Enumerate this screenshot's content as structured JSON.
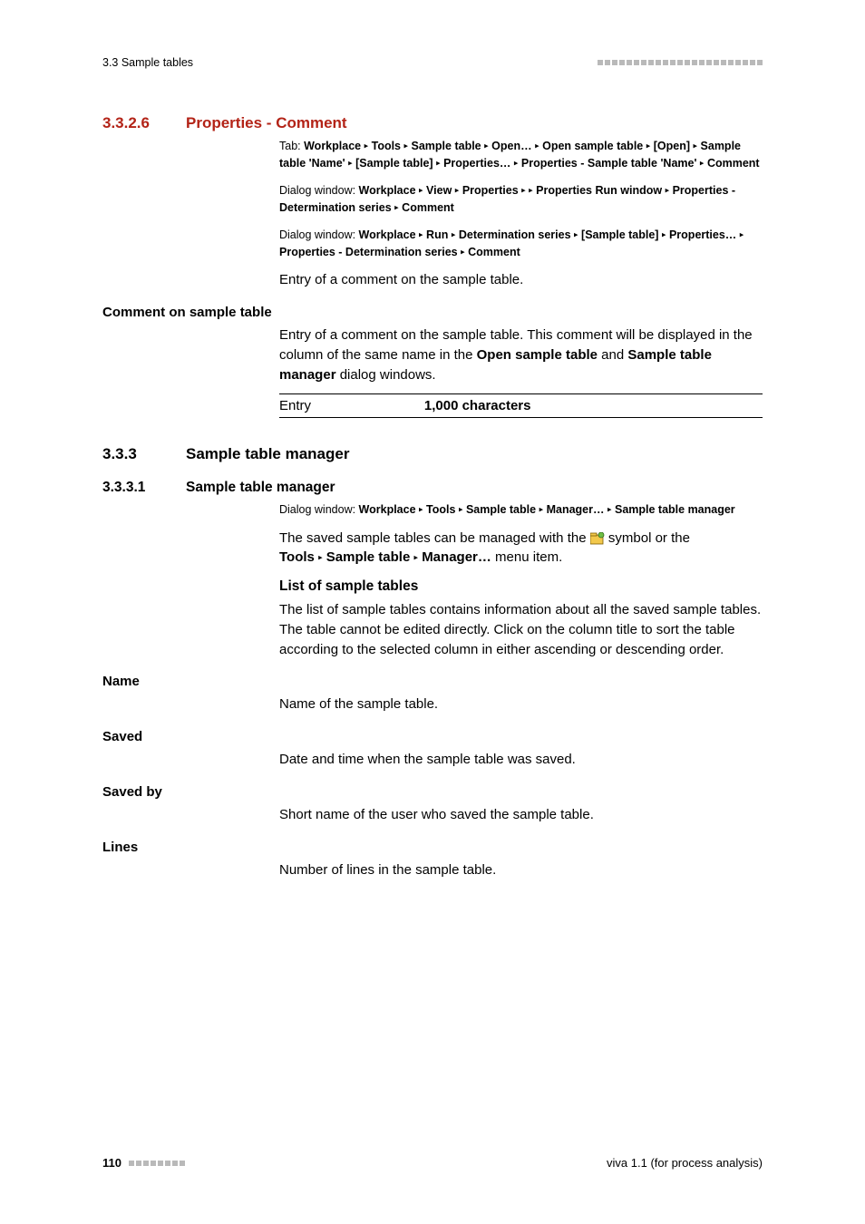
{
  "header": {
    "left": "3.3 Sample tables",
    "square_color": "#b9b9b9",
    "square_count": 23
  },
  "sec_3326": {
    "num": "3.3.2.6",
    "title": "Properties - Comment",
    "tab_prefix": "Tab: ",
    "tab_parts": [
      "Workplace",
      "Tools",
      "Sample table",
      "Open…",
      "Open sample table",
      "[Open]",
      "Sample table 'Name'",
      "[Sample table]",
      "Properties…",
      "Properties - Sample table 'Name'",
      "Comment"
    ],
    "dialog1_prefix": "Dialog window: ",
    "dialog1_parts": [
      "Workplace",
      "View",
      "Properties",
      "",
      "Properties Run window",
      "Properties - Determination series",
      "Comment"
    ],
    "dialog2_prefix": "Dialog window: ",
    "dialog2_parts": [
      "Workplace",
      "Run",
      "Determination series",
      "[Sample table]",
      "Properties…",
      "Properties - Determination series",
      "Comment"
    ],
    "intro": "Entry of a comment on the sample table.",
    "field_title": "Comment on sample table",
    "field_text_pre": "Entry of a comment on the sample table. This comment will be displayed in the column of the same name in the ",
    "field_text_b1": "Open sample table",
    "field_text_mid": " and ",
    "field_text_b2": "Sample table manager",
    "field_text_post": " dialog windows.",
    "entry_label": "Entry",
    "entry_value": "1,000 characters"
  },
  "sec_333": {
    "num": "3.3.3",
    "title": "Sample table manager"
  },
  "sec_3331": {
    "num": "3.3.3.1",
    "title": "Sample table manager",
    "dialog_prefix": "Dialog window: ",
    "dialog_parts": [
      "Workplace",
      "Tools",
      "Sample table",
      "Manager…",
      "Sample table manager"
    ],
    "para1_pre": "The saved sample tables can be managed with the ",
    "para1_post": " symbol or the ",
    "para1_menu": [
      "Tools",
      "Sample table",
      "Manager…"
    ],
    "para1_tail": " menu item.",
    "list_heading": "List of sample tables",
    "list_text": "The list of sample tables contains information about all the saved sample tables. The table cannot be edited directly. Click on the column title to sort the table according to the selected column in either ascending or descending order.",
    "fields": [
      {
        "name": "Name",
        "text": "Name of the sample table."
      },
      {
        "name": "Saved",
        "text": "Date and time when the sample table was saved."
      },
      {
        "name": "Saved by",
        "text": "Short name of the user who saved the sample table."
      },
      {
        "name": "Lines",
        "text": "Number of lines in the sample table."
      }
    ]
  },
  "footer": {
    "page": "110",
    "square_count": 8,
    "right": "viva 1.1 (for process analysis)"
  },
  "colors": {
    "heading_red": "#b32317",
    "square_gray": "#b9b9b9",
    "text": "#000000",
    "bg": "#ffffff"
  }
}
